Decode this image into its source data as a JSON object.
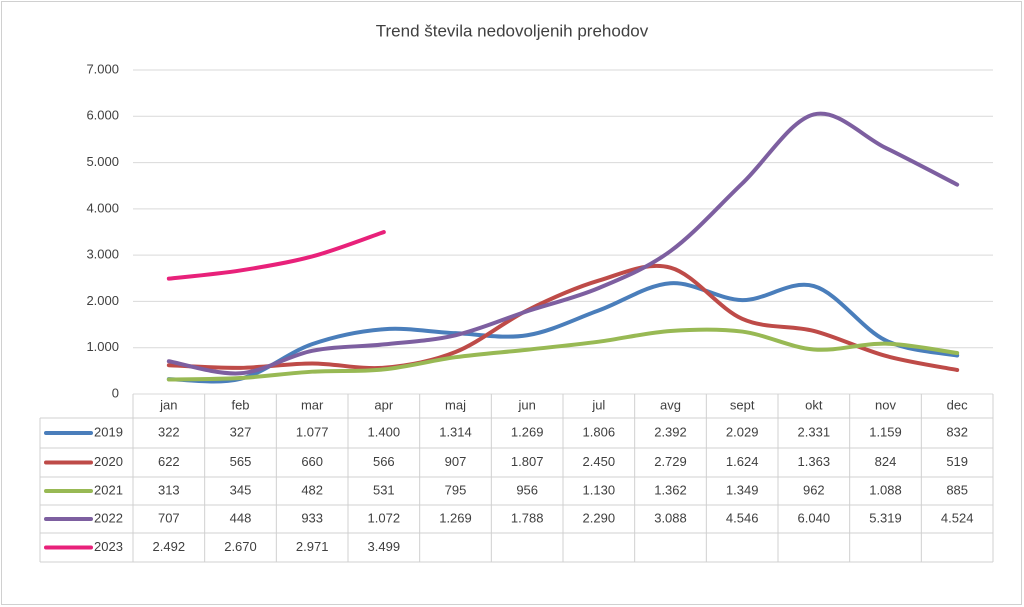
{
  "chart_data": {
    "type": "line",
    "title": "Trend števila nedovoljenih prehodov",
    "categories": [
      "jan",
      "feb",
      "mar",
      "apr",
      "maj",
      "jun",
      "jul",
      "avg",
      "sept",
      "okt",
      "nov",
      "dec"
    ],
    "ylim": [
      0,
      7000
    ],
    "yticks": [
      0,
      {
        "value": 1000,
        "label": "1.000"
      },
      {
        "value": 2000,
        "label": "2.000"
      },
      {
        "value": 3000,
        "label": "3.000"
      },
      {
        "value": 4000,
        "label": "4.000"
      },
      {
        "value": 5000,
        "label": "5.000"
      },
      {
        "value": 6000,
        "label": "6.000"
      },
      {
        "value": 7000,
        "label": "7.000"
      }
    ],
    "grid": true,
    "series": [
      {
        "name": "2019",
        "color": "#4a7ebb",
        "values": [
          322,
          327,
          1077,
          1400,
          1314,
          1269,
          1806,
          2392,
          2029,
          2331,
          1159,
          832
        ],
        "value_labels": [
          "322",
          "327",
          "1.077",
          "1.400",
          "1.314",
          "1.269",
          "1.806",
          "2.392",
          "2.029",
          "2.331",
          "1.159",
          "832"
        ]
      },
      {
        "name": "2020",
        "color": "#be4b48",
        "values": [
          622,
          565,
          660,
          566,
          907,
          1807,
          2450,
          2729,
          1624,
          1363,
          824,
          519
        ],
        "value_labels": [
          "622",
          "565",
          "660",
          "566",
          "907",
          "1.807",
          "2.450",
          "2.729",
          "1.624",
          "1.363",
          "824",
          "519"
        ]
      },
      {
        "name": "2021",
        "color": "#98b954",
        "values": [
          313,
          345,
          482,
          531,
          795,
          956,
          1130,
          1362,
          1349,
          962,
          1088,
          885
        ],
        "value_labels": [
          "313",
          "345",
          "482",
          "531",
          "795",
          "956",
          "1.130",
          "1.362",
          "1.349",
          "962",
          "1.088",
          "885"
        ]
      },
      {
        "name": "2022",
        "color": "#7d5fa0",
        "values": [
          707,
          448,
          933,
          1072,
          1269,
          1788,
          2290,
          3088,
          4546,
          6040,
          5319,
          4524
        ],
        "value_labels": [
          "707",
          "448",
          "933",
          "1.072",
          "1.269",
          "1.788",
          "2.290",
          "3.088",
          "4.546",
          "6.040",
          "5.319",
          "4.524"
        ]
      },
      {
        "name": "2023",
        "color": "#e8217a",
        "values": [
          2492,
          2670,
          2971,
          3499,
          null,
          null,
          null,
          null,
          null,
          null,
          null,
          null
        ],
        "value_labels": [
          "2.492",
          "2.670",
          "2.971",
          "3.499",
          null,
          null,
          null,
          null,
          null,
          null,
          null,
          null
        ]
      }
    ]
  }
}
